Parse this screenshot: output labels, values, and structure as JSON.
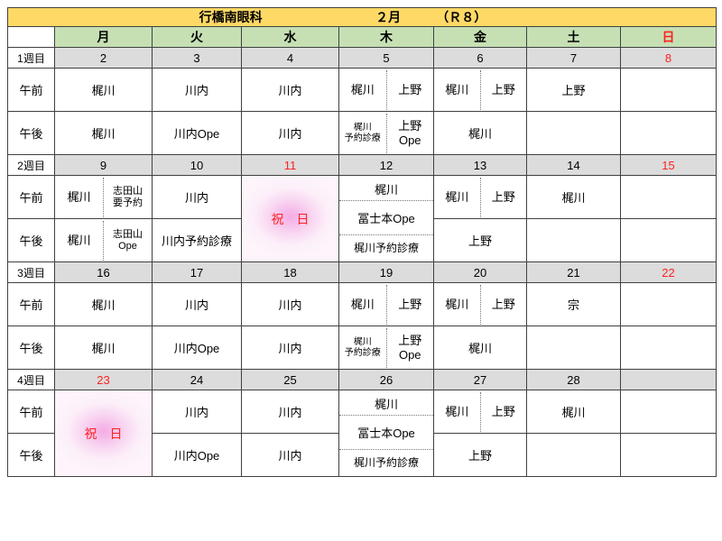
{
  "colors": {
    "title_bg": "#FFD966",
    "day_header_bg": "#C6E0B4",
    "date_row_bg": "#DCDCDC",
    "holiday_pink": "#F299DE",
    "red_text": "#FF2020"
  },
  "header": {
    "clinic": "行橋南眼科",
    "month": "２月",
    "era": "（Ｒ８）"
  },
  "labels": {
    "am": "午前",
    "pm": "午後"
  },
  "days_of_week": [
    {
      "label": "月",
      "red": false
    },
    {
      "label": "火",
      "red": false
    },
    {
      "label": "水",
      "red": false
    },
    {
      "label": "木",
      "red": false
    },
    {
      "label": "金",
      "red": false
    },
    {
      "label": "土",
      "red": false
    },
    {
      "label": "日",
      "red": true
    }
  ],
  "weeks": [
    {
      "label": "1週目",
      "days": [
        {
          "date": "2",
          "red": false,
          "am": {
            "kind": "single",
            "text": "梶川"
          },
          "pm": {
            "kind": "single",
            "text": "梶川"
          }
        },
        {
          "date": "3",
          "red": false,
          "am": {
            "kind": "single",
            "text": "川内"
          },
          "pm": {
            "kind": "single",
            "text": "川内Ope"
          }
        },
        {
          "date": "4",
          "red": false,
          "am": {
            "kind": "single",
            "text": "川内"
          },
          "pm": {
            "kind": "single",
            "text": "川内"
          }
        },
        {
          "date": "5",
          "red": false,
          "am": {
            "kind": "split",
            "left": [
              "梶川"
            ],
            "right": [
              "上野"
            ]
          },
          "pm": {
            "kind": "split",
            "left": [
              "梶川",
              "予約診療"
            ],
            "right": [
              "上野",
              "Ope"
            ]
          }
        },
        {
          "date": "6",
          "red": false,
          "am": {
            "kind": "split",
            "left": [
              "梶川"
            ],
            "right": [
              "上野"
            ]
          },
          "pm": {
            "kind": "single",
            "text": "梶川"
          }
        },
        {
          "date": "7",
          "red": false,
          "am": {
            "kind": "single",
            "text": "上野"
          },
          "pm": {
            "kind": "empty"
          }
        },
        {
          "date": "8",
          "red": true,
          "am": {
            "kind": "empty"
          },
          "pm": {
            "kind": "empty"
          }
        }
      ]
    },
    {
      "label": "2週目",
      "days": [
        {
          "date": "9",
          "red": false,
          "am": {
            "kind": "split",
            "left": [
              "梶川"
            ],
            "right": [
              "志田山",
              "要予約"
            ]
          },
          "pm": {
            "kind": "split",
            "left": [
              "梶川"
            ],
            "right": [
              "志田山",
              "Ope"
            ]
          }
        },
        {
          "date": "10",
          "red": false,
          "am": {
            "kind": "single",
            "text": "川内"
          },
          "pm": {
            "kind": "single",
            "text": "川内予約診療"
          }
        },
        {
          "date": "11",
          "red": true,
          "full": {
            "kind": "holiday",
            "text": "祝　日"
          }
        },
        {
          "date": "12",
          "red": false,
          "full": {
            "kind": "triple",
            "lines": [
              "梶川",
              "冨士本Ope",
              "梶川予約診療"
            ]
          }
        },
        {
          "date": "13",
          "red": false,
          "am": {
            "kind": "split",
            "left": [
              "梶川"
            ],
            "right": [
              "上野"
            ]
          },
          "pm": {
            "kind": "single",
            "text": "上野"
          }
        },
        {
          "date": "14",
          "red": false,
          "am": {
            "kind": "single",
            "text": "梶川"
          },
          "pm": {
            "kind": "empty"
          }
        },
        {
          "date": "15",
          "red": true,
          "am": {
            "kind": "empty"
          },
          "pm": {
            "kind": "empty"
          }
        }
      ]
    },
    {
      "label": "3週目",
      "days": [
        {
          "date": "16",
          "red": false,
          "am": {
            "kind": "single",
            "text": "梶川"
          },
          "pm": {
            "kind": "single",
            "text": "梶川"
          }
        },
        {
          "date": "17",
          "red": false,
          "am": {
            "kind": "single",
            "text": "川内"
          },
          "pm": {
            "kind": "single",
            "text": "川内Ope"
          }
        },
        {
          "date": "18",
          "red": false,
          "am": {
            "kind": "single",
            "text": "川内"
          },
          "pm": {
            "kind": "single",
            "text": "川内"
          }
        },
        {
          "date": "19",
          "red": false,
          "am": {
            "kind": "split",
            "left": [
              "梶川"
            ],
            "right": [
              "上野"
            ]
          },
          "pm": {
            "kind": "split",
            "left": [
              "梶川",
              "予約診療"
            ],
            "right": [
              "上野",
              "Ope"
            ]
          }
        },
        {
          "date": "20",
          "red": false,
          "am": {
            "kind": "split",
            "left": [
              "梶川"
            ],
            "right": [
              "上野"
            ]
          },
          "pm": {
            "kind": "single",
            "text": "梶川"
          }
        },
        {
          "date": "21",
          "red": false,
          "am": {
            "kind": "single",
            "text": "宗"
          },
          "pm": {
            "kind": "empty"
          }
        },
        {
          "date": "22",
          "red": true,
          "am": {
            "kind": "empty"
          },
          "pm": {
            "kind": "empty"
          }
        }
      ]
    },
    {
      "label": "4週目",
      "days": [
        {
          "date": "23",
          "red": true,
          "full": {
            "kind": "holiday",
            "text": "祝　日"
          }
        },
        {
          "date": "24",
          "red": false,
          "am": {
            "kind": "single",
            "text": "川内"
          },
          "pm": {
            "kind": "single",
            "text": "川内Ope"
          }
        },
        {
          "date": "25",
          "red": false,
          "am": {
            "kind": "single",
            "text": "川内"
          },
          "pm": {
            "kind": "single",
            "text": "川内"
          }
        },
        {
          "date": "26",
          "red": false,
          "full": {
            "kind": "triple",
            "lines": [
              "梶川",
              "冨士本Ope",
              "梶川予約診療"
            ]
          }
        },
        {
          "date": "27",
          "red": false,
          "am": {
            "kind": "split",
            "left": [
              "梶川"
            ],
            "right": [
              "上野"
            ]
          },
          "pm": {
            "kind": "single",
            "text": "上野"
          }
        },
        {
          "date": "28",
          "red": false,
          "am": {
            "kind": "single",
            "text": "梶川"
          },
          "pm": {
            "kind": "empty"
          }
        },
        {
          "date": "",
          "red": false,
          "am": {
            "kind": "empty"
          },
          "pm": {
            "kind": "empty"
          }
        }
      ]
    }
  ]
}
